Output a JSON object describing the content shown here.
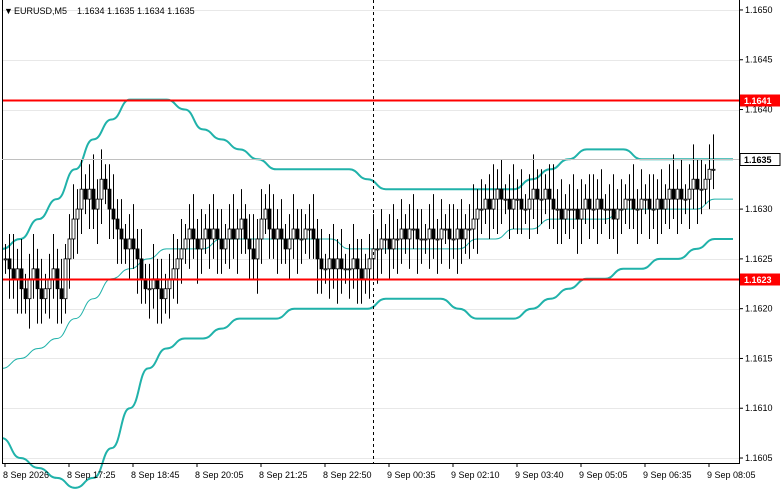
{
  "header": {
    "symbol": "EURUSD,M5",
    "ohlc": "1.1634 1.1635 1.1634 1.1635",
    "arrow_glyph": "▼"
  },
  "colors": {
    "candle": "#000000",
    "band": "#20b2aa",
    "level": "#ff0000",
    "grid": "#c0c0c0",
    "frame": "#000000",
    "current_label_bg": "#ffffff"
  },
  "chart_data": {
    "type": "candlestick",
    "ylim": [
      1.16045,
      1.1651
    ],
    "y_ticks": [
      "1.1650",
      "1.1645",
      "1.1640",
      "1.1635",
      "1.1630",
      "1.1625",
      "1.1620",
      "1.1615",
      "1.1610",
      "1.1605"
    ],
    "x_ticks": [
      "8 Sep 2026",
      "8 Sep 17:25",
      "8 Sep 18:45",
      "8 Sep 20:05",
      "8 Sep 21:25",
      "8 Sep 22:50",
      "9 Sep 00:35",
      "9 Sep 02:10",
      "9 Sep 03:40",
      "9 Sep 05:05",
      "9 Sep 06:35",
      "9 Sep 08:05"
    ],
    "x_tick_bar_index": [
      0,
      16,
      32,
      48,
      64,
      80,
      96,
      112,
      128,
      144,
      160,
      176
    ],
    "horizontal_levels": [
      {
        "value": 1.1641,
        "label": "1.1641"
      },
      {
        "value": 1.1623,
        "label": "1.1623"
      }
    ],
    "current_price": {
      "value": 1.1635,
      "label": "1.1635"
    },
    "session_marker_bar_index": 92,
    "bar_count": 178,
    "closes": [
      1.1625,
      1.1624,
      1.1623,
      1.1624,
      1.1622,
      1.1621,
      1.1623,
      1.1624,
      1.1622,
      1.1621,
      1.1622,
      1.1623,
      1.1624,
      1.1622,
      1.1621,
      1.1625,
      1.1627,
      1.1629,
      1.163,
      1.1632,
      1.1631,
      1.1632,
      1.163,
      1.1631,
      1.1633,
      1.1632,
      1.163,
      1.1629,
      1.1628,
      1.1627,
      1.1626,
      1.1627,
      1.1626,
      1.1625,
      1.1623,
      1.1622,
      1.1622,
      1.1623,
      1.1622,
      1.1621,
      1.1622,
      1.1623,
      1.1624,
      1.1625,
      1.1626,
      1.1627,
      1.1628,
      1.1627,
      1.1626,
      1.1627,
      1.1628,
      1.1627,
      1.1628,
      1.1627,
      1.1626,
      1.1627,
      1.1628,
      1.1627,
      1.1628,
      1.1629,
      1.1627,
      1.1626,
      1.1625,
      1.1627,
      1.1629,
      1.163,
      1.1628,
      1.1627,
      1.1628,
      1.1627,
      1.1626,
      1.1627,
      1.1628,
      1.1627,
      1.1627,
      1.1628,
      1.1628,
      1.1627,
      1.1625,
      1.1624,
      1.1624,
      1.1625,
      1.1624,
      1.1625,
      1.1624,
      1.1624,
      1.1624,
      1.1625,
      1.1624,
      1.1623,
      1.1624,
      1.1625,
      1.1626,
      1.1626,
      1.1627,
      1.1627,
      1.1626,
      1.1627,
      1.1627,
      1.1628,
      1.1627,
      1.1628,
      1.1628,
      1.1627,
      1.1627,
      1.1627,
      1.1628,
      1.1627,
      1.1627,
      1.1628,
      1.1628,
      1.1627,
      1.1627,
      1.1628,
      1.1627,
      1.1628,
      1.1628,
      1.1629,
      1.163,
      1.163,
      1.1631,
      1.163,
      1.1631,
      1.1632,
      1.1631,
      1.1631,
      1.163,
      1.1631,
      1.1631,
      1.163,
      1.163,
      1.1631,
      1.1632,
      1.1631,
      1.1631,
      1.1632,
      1.1631,
      1.163,
      1.163,
      1.1629,
      1.163,
      1.163,
      1.163,
      1.1629,
      1.163,
      1.1631,
      1.163,
      1.163,
      1.1631,
      1.163,
      1.163,
      1.163,
      1.1629,
      1.163,
      1.163,
      1.1631,
      1.1631,
      1.163,
      1.163,
      1.1631,
      1.1631,
      1.163,
      1.163,
      1.1631,
      1.163,
      1.1631,
      1.1632,
      1.1631,
      1.1632,
      1.1631,
      1.1631,
      1.1632,
      1.1633,
      1.1632,
      1.1632,
      1.1633,
      1.1634,
      1.1634
    ],
    "bollinger_upper": [
      1.1626,
      1.1627,
      1.1629,
      1.1631,
      1.1634,
      1.1637,
      1.1639,
      1.1641,
      1.1641,
      1.1641,
      1.164,
      1.1638,
      1.1637,
      1.1636,
      1.1635,
      1.1634,
      1.1634,
      1.1634,
      1.1634,
      1.1634,
      1.1633,
      1.1632,
      1.1632,
      1.1632,
      1.1632,
      1.1632,
      1.1632,
      1.1632,
      1.1632,
      1.1633,
      1.1634,
      1.1635,
      1.1636,
      1.1636,
      1.1636,
      1.1635,
      1.1635,
      1.1635,
      1.1635,
      1.1635,
      1.1635
    ],
    "bollinger_middle": [
      1.1614,
      1.1615,
      1.1616,
      1.1617,
      1.1619,
      1.1621,
      1.1623,
      1.1624,
      1.1625,
      1.1626,
      1.1626,
      1.1626,
      1.1627,
      1.1627,
      1.1627,
      1.1627,
      1.1627,
      1.1627,
      1.1627,
      1.1626,
      1.1626,
      1.1626,
      1.1626,
      1.1626,
      1.1626,
      1.1626,
      1.1627,
      1.1627,
      1.1628,
      1.1628,
      1.1629,
      1.1629,
      1.1629,
      1.1629,
      1.163,
      1.163,
      1.163,
      1.163,
      1.163,
      1.1631,
      1.1631
    ],
    "bollinger_lower": [
      1.1607,
      1.1605,
      1.1604,
      1.1603,
      1.1602,
      1.1603,
      1.1606,
      1.161,
      1.1614,
      1.1616,
      1.1617,
      1.1617,
      1.1618,
      1.1619,
      1.1619,
      1.1619,
      1.162,
      1.162,
      1.162,
      1.162,
      1.162,
      1.1621,
      1.1621,
      1.1621,
      1.1621,
      1.162,
      1.1619,
      1.1619,
      1.1619,
      1.162,
      1.1621,
      1.1622,
      1.1623,
      1.1623,
      1.1624,
      1.1624,
      1.1625,
      1.1625,
      1.1626,
      1.1627,
      1.1627
    ]
  }
}
